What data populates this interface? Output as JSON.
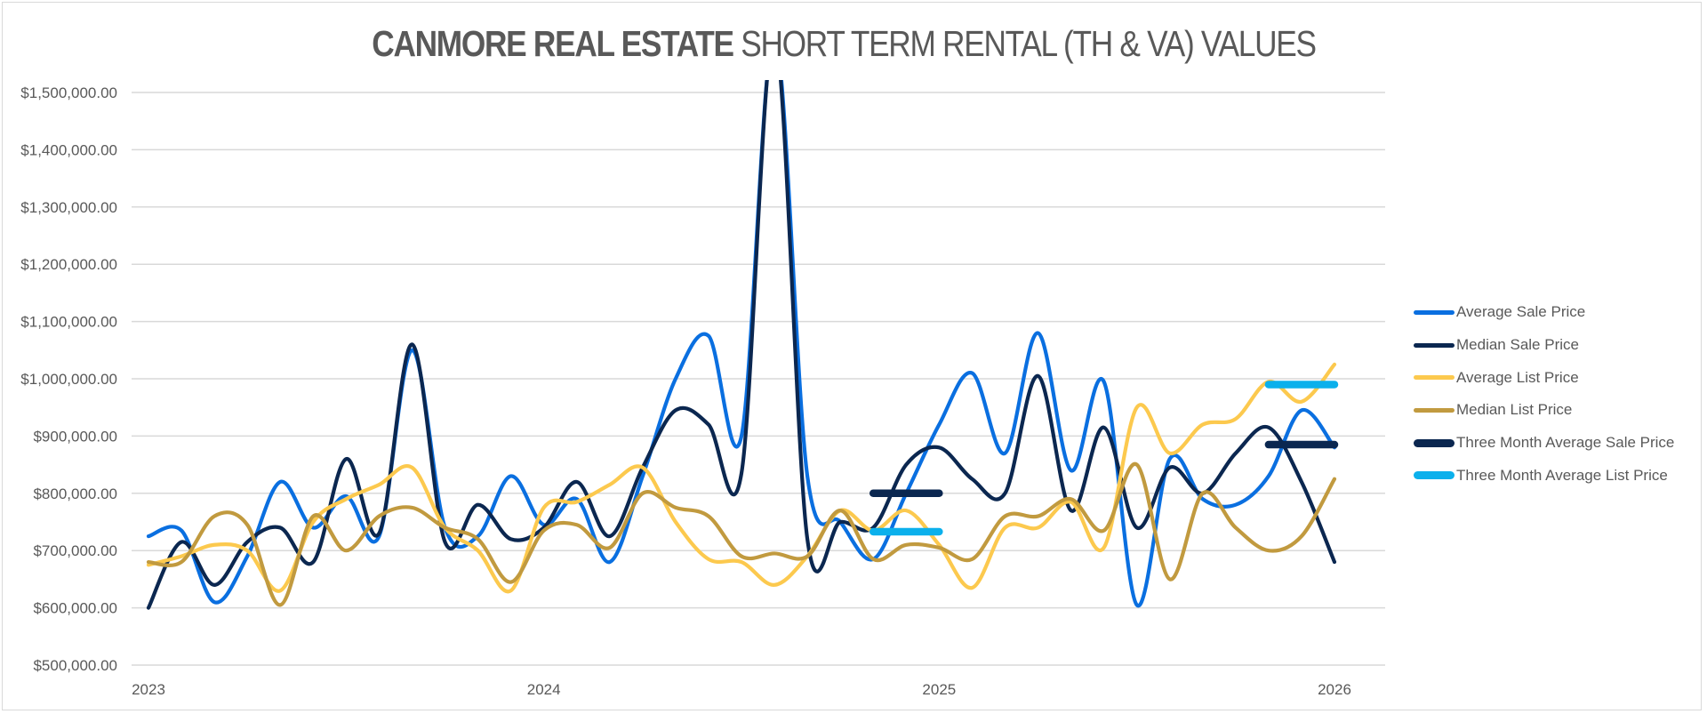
{
  "chart_data": {
    "type": "line",
    "title_bold": "CANMORE REAL ESTATE",
    "title_rest": "SHORT TERM RENTAL (TH & VA) VALUES",
    "xlabel": "",
    "ylabel": "",
    "ylim": [
      500000,
      1500000
    ],
    "y_ticks": [
      500000,
      600000,
      700000,
      800000,
      900000,
      1000000,
      1100000,
      1200000,
      1300000,
      1400000,
      1500000
    ],
    "y_tick_labels": [
      "$500,000.00",
      "$600,000.00",
      "$700,000.00",
      "$800,000.00",
      "$900,000.00",
      "$1,000,000.00",
      "$1,100,000.00",
      "$1,200,000.00",
      "$1,300,000.00",
      "$1,400,000.00",
      "$1,500,000.00"
    ],
    "x_tick_labels": [
      "2023",
      "2024",
      "2025",
      "2026"
    ],
    "x_tick_index": [
      0,
      12,
      24,
      36
    ],
    "x_unit": "month index from Jan 2023 (0) to Jan 2026 (36)",
    "grid": true,
    "legend_position": "right",
    "series": [
      {
        "name": "Average Sale Price",
        "color": "#0a6fe0",
        "style": "smooth",
        "values": [
          725000,
          735000,
          610000,
          690000,
          820000,
          740000,
          795000,
          725000,
          1050000,
          740000,
          725000,
          830000,
          745000,
          790000,
          680000,
          830000,
          1000000,
          1075000,
          900000,
          1600000,
          830000,
          750000,
          685000,
          800000,
          920000,
          1010000,
          870000,
          1080000,
          840000,
          995000,
          605000,
          860000,
          790000,
          780000,
          830000,
          945000,
          880000
        ]
      },
      {
        "name": "Median Sale Price",
        "color": "#0b2750",
        "style": "smooth",
        "values": [
          600000,
          715000,
          640000,
          715000,
          740000,
          680000,
          860000,
          730000,
          1060000,
          715000,
          780000,
          720000,
          740000,
          820000,
          725000,
          845000,
          945000,
          920000,
          835000,
          1600000,
          720000,
          750000,
          740000,
          850000,
          880000,
          825000,
          800000,
          1005000,
          770000,
          915000,
          740000,
          845000,
          800000,
          870000,
          915000,
          820000,
          680000
        ]
      },
      {
        "name": "Average List Price",
        "color": "#fcc94e",
        "style": "smooth",
        "values": [
          675000,
          690000,
          710000,
          700000,
          630000,
          750000,
          790000,
          815000,
          845000,
          740000,
          700000,
          630000,
          775000,
          785000,
          815000,
          845000,
          750000,
          685000,
          680000,
          640000,
          690000,
          770000,
          735000,
          770000,
          710000,
          635000,
          740000,
          740000,
          785000,
          705000,
          950000,
          870000,
          920000,
          930000,
          995000,
          960000,
          1025000
        ]
      },
      {
        "name": "Median List Price",
        "color": "#c19a3f",
        "style": "smooth",
        "values": [
          680000,
          680000,
          760000,
          745000,
          605000,
          760000,
          700000,
          760000,
          775000,
          740000,
          720000,
          645000,
          735000,
          745000,
          705000,
          800000,
          775000,
          760000,
          690000,
          695000,
          690000,
          770000,
          685000,
          710000,
          705000,
          685000,
          760000,
          760000,
          790000,
          735000,
          850000,
          650000,
          800000,
          740000,
          700000,
          725000,
          825000
        ]
      },
      {
        "name": "Three Month Average Sale Price",
        "color": "#0b2750",
        "style": "segments",
        "segments": [
          {
            "from": 22,
            "to": 24,
            "value": 800000
          },
          {
            "from": 34,
            "to": 36,
            "value": 885000
          }
        ]
      },
      {
        "name": "Three Month Average List Price",
        "color": "#0bb0ec",
        "style": "segments",
        "segments": [
          {
            "from": 22,
            "to": 24,
            "value": 733000
          },
          {
            "from": 34,
            "to": 36,
            "value": 990000
          }
        ]
      }
    ]
  }
}
